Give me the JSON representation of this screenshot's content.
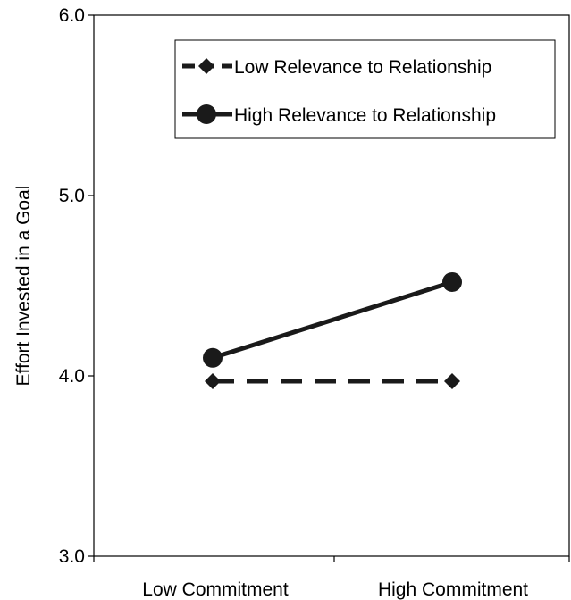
{
  "chart_data": {
    "type": "line",
    "title": "",
    "xlabel": "",
    "ylabel": "Effort Invested in a Goal",
    "categories": [
      "Low Commitment",
      "High Commitment"
    ],
    "ylim": [
      3.0,
      6.0
    ],
    "yticks": [
      "3.0",
      "4.0",
      "5.0",
      "6.0"
    ],
    "grid": false,
    "legend_position": "top-right",
    "series": [
      {
        "name": "Low Relevance to Relationship",
        "values": [
          3.97,
          3.97
        ],
        "style": "dashed",
        "marker": "diamond",
        "color": "#1a1a1a"
      },
      {
        "name": "High Relevance to Relationship",
        "values": [
          4.1,
          4.52
        ],
        "style": "solid",
        "marker": "circle",
        "color": "#1a1a1a"
      }
    ]
  }
}
